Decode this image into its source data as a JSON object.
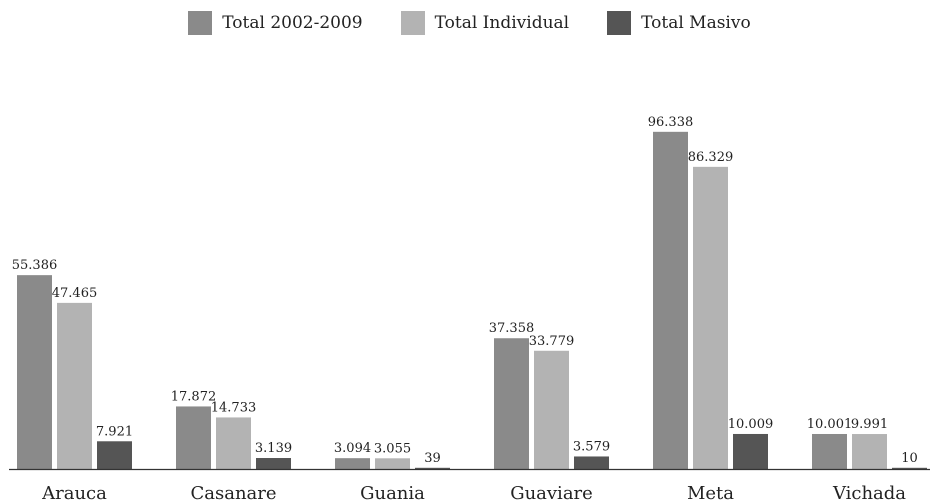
{
  "chart_data": {
    "type": "bar",
    "categories": [
      "Arauca",
      "Casanare",
      "Guania",
      "Guaviare",
      "Meta",
      "Vichada"
    ],
    "series": [
      {
        "name": "Total 2002-2009",
        "color": "#8a8a8a",
        "values": [
          55386,
          17872,
          3094,
          37358,
          96338,
          10001
        ],
        "labels": [
          "55.386",
          "17.872",
          "3.094",
          "37.358",
          "96.338",
          "10.001"
        ]
      },
      {
        "name": "Total Individual",
        "color": "#b3b3b3",
        "values": [
          47465,
          14733,
          3055,
          33779,
          86329,
          9991
        ],
        "labels": [
          "47.465",
          "14.733",
          "3.055",
          "33.779",
          "86.329",
          "9.991"
        ]
      },
      {
        "name": "Total Masivo",
        "color": "#555555",
        "values": [
          7921,
          3139,
          39,
          3579,
          10009,
          10
        ],
        "labels": [
          "7.921",
          "3.139",
          "39",
          "3.579",
          "10.009",
          "10"
        ]
      }
    ],
    "ylim": [
      0,
      100000
    ],
    "legend_position": "top-center",
    "grid": false,
    "axis_line_color": "#333333"
  }
}
